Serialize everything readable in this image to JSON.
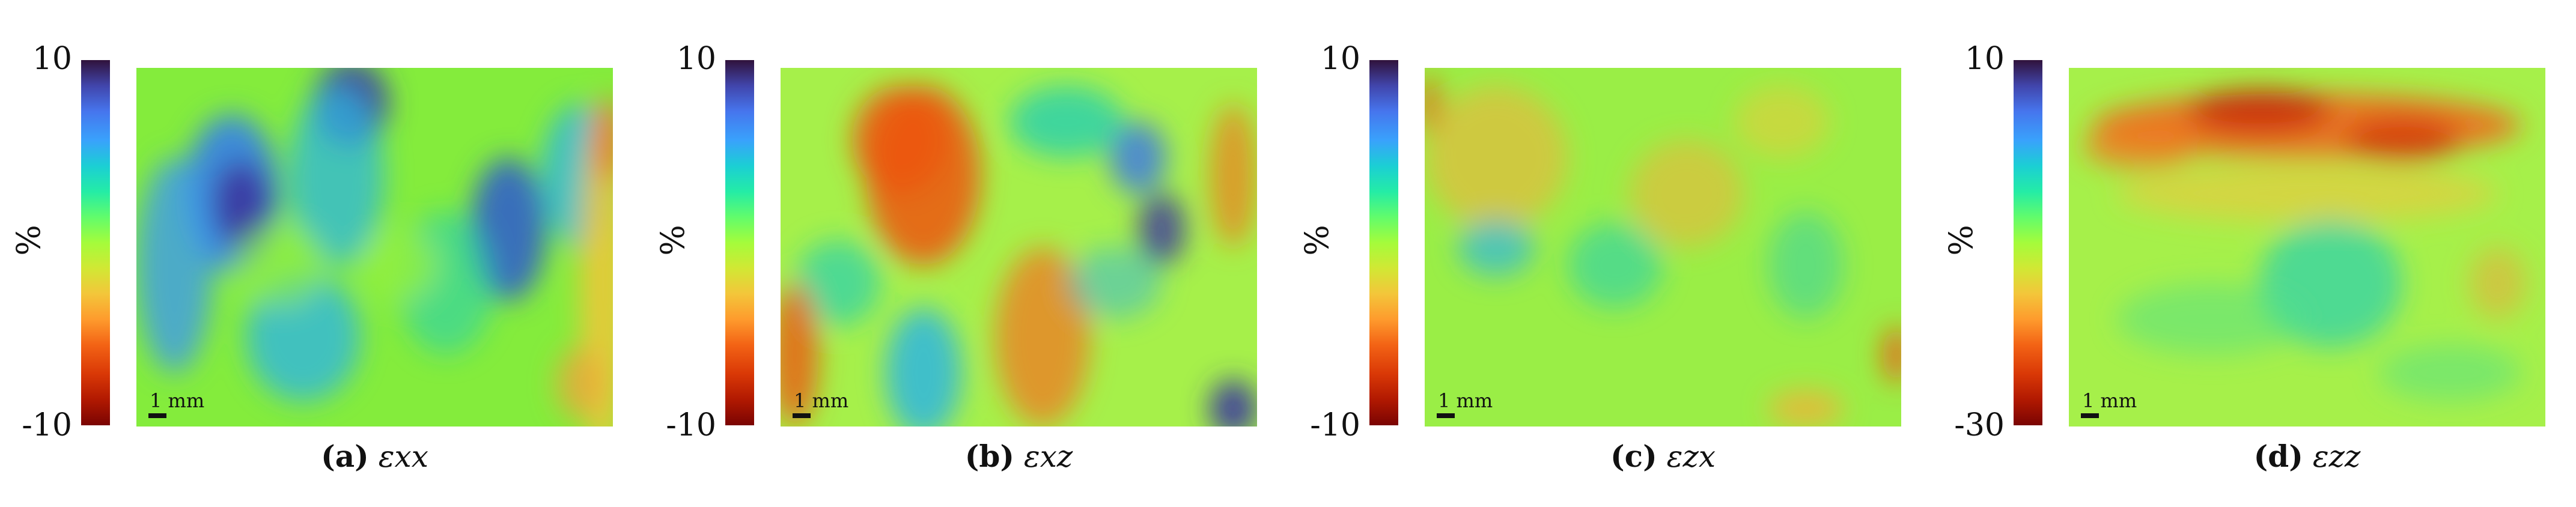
{
  "chart_data": [
    {
      "type": "heatmap",
      "label": "(a)",
      "symbol": "εxx",
      "unit": "%",
      "colorbar": {
        "max": "10",
        "min": "-10"
      },
      "scale_bar": "1 mm",
      "base": "#84ec3c",
      "blobs": [
        [
          0.2,
          0.35,
          0.1,
          0.22,
          "#3a86e0",
          0.95
        ],
        [
          0.22,
          0.38,
          0.06,
          0.12,
          "#3b36a0",
          0.9
        ],
        [
          0.08,
          0.55,
          0.08,
          0.3,
          "#3f9bea",
          0.8
        ],
        [
          0.45,
          0.1,
          0.08,
          0.12,
          "#3b3fa8",
          0.9
        ],
        [
          0.42,
          0.3,
          0.1,
          0.25,
          "#2fb6df",
          0.75
        ],
        [
          0.78,
          0.45,
          0.08,
          0.2,
          "#3263c8",
          0.9
        ],
        [
          0.65,
          0.6,
          0.1,
          0.2,
          "#27d0b0",
          0.6
        ],
        [
          0.35,
          0.75,
          0.12,
          0.18,
          "#2fb6df",
          0.8
        ],
        [
          0.93,
          0.3,
          0.08,
          0.2,
          "#2fb6df",
          0.8
        ],
        [
          0.98,
          0.6,
          0.05,
          0.5,
          "#f2c53a",
          0.85
        ],
        [
          0.99,
          0.2,
          0.03,
          0.12,
          "#f06a1c",
          0.8
        ],
        [
          0.93,
          0.88,
          0.05,
          0.1,
          "#f2a13a",
          0.7
        ],
        [
          0.55,
          0.55,
          0.08,
          0.1,
          "#93f040",
          0.8
        ],
        [
          0.3,
          0.55,
          0.1,
          0.12,
          "#93f040",
          0.6
        ]
      ]
    },
    {
      "type": "heatmap",
      "label": "(b)",
      "symbol": "εxz",
      "unit": "%",
      "colorbar": {
        "max": "10",
        "min": "-10"
      },
      "scale_bar": "1 mm",
      "base": "#a6f04a",
      "blobs": [
        [
          0.3,
          0.3,
          0.12,
          0.25,
          "#ee5512",
          0.85
        ],
        [
          0.25,
          0.2,
          0.1,
          0.15,
          "#ee5512",
          0.8
        ],
        [
          0.12,
          0.6,
          0.09,
          0.12,
          "#27d0b0",
          0.7
        ],
        [
          0.6,
          0.15,
          0.12,
          0.1,
          "#27d0b0",
          0.8
        ],
        [
          0.75,
          0.25,
          0.06,
          0.1,
          "#3f7de0",
          0.85
        ],
        [
          0.8,
          0.45,
          0.05,
          0.1,
          "#3b36a0",
          0.8
        ],
        [
          0.55,
          0.75,
          0.1,
          0.25,
          "#f07a20",
          0.75
        ],
        [
          0.3,
          0.85,
          0.08,
          0.18,
          "#2fb6df",
          0.85
        ],
        [
          0.95,
          0.95,
          0.05,
          0.08,
          "#3b36a0",
          0.9
        ],
        [
          0.03,
          0.8,
          0.05,
          0.2,
          "#ee5512",
          0.8
        ],
        [
          0.95,
          0.3,
          0.05,
          0.2,
          "#f07a20",
          0.7
        ],
        [
          0.7,
          0.6,
          0.1,
          0.1,
          "#2fb6df",
          0.5
        ]
      ]
    },
    {
      "type": "heatmap",
      "label": "(c)",
      "symbol": "εzx",
      "unit": "%",
      "colorbar": {
        "max": "10",
        "min": "-10"
      },
      "scale_bar": "1 mm",
      "base": "#9aee46",
      "blobs": [
        [
          0.15,
          0.25,
          0.15,
          0.2,
          "#f2b03a",
          0.6
        ],
        [
          0.55,
          0.35,
          0.12,
          0.15,
          "#f2b03a",
          0.55
        ],
        [
          0.15,
          0.5,
          0.08,
          0.08,
          "#2fb6df",
          0.7
        ],
        [
          0.4,
          0.55,
          0.1,
          0.12,
          "#27d0b0",
          0.6
        ],
        [
          0.8,
          0.55,
          0.08,
          0.15,
          "#27d0b0",
          0.5
        ],
        [
          0.01,
          0.1,
          0.02,
          0.08,
          "#ee5512",
          0.85
        ],
        [
          0.99,
          0.8,
          0.03,
          0.08,
          "#ee5512",
          0.8
        ],
        [
          0.8,
          0.95,
          0.08,
          0.05,
          "#f2b03a",
          0.8
        ],
        [
          0.75,
          0.15,
          0.1,
          0.1,
          "#f2c53a",
          0.5
        ]
      ]
    },
    {
      "type": "heatmap",
      "label": "(d)",
      "symbol": "εzz",
      "unit": "%",
      "colorbar": {
        "max": "10",
        "min": "-30"
      },
      "scale_bar": "1 mm",
      "base": "#a6f04a",
      "blobs": [
        [
          0.5,
          0.16,
          0.45,
          0.09,
          "#ee6a1c",
          0.9
        ],
        [
          0.4,
          0.12,
          0.15,
          0.06,
          "#c82a06",
          0.85
        ],
        [
          0.7,
          0.2,
          0.12,
          0.06,
          "#d2360a",
          0.8
        ],
        [
          0.15,
          0.22,
          0.12,
          0.06,
          "#f07a20",
          0.8
        ],
        [
          0.5,
          0.35,
          0.4,
          0.08,
          "#f2c53a",
          0.6
        ],
        [
          0.55,
          0.6,
          0.15,
          0.18,
          "#27d0b0",
          0.7
        ],
        [
          0.3,
          0.7,
          0.2,
          0.1,
          "#50e08a",
          0.5
        ],
        [
          0.9,
          0.6,
          0.06,
          0.1,
          "#f2a13a",
          0.5
        ],
        [
          0.8,
          0.85,
          0.15,
          0.08,
          "#50e08a",
          0.5
        ]
      ]
    }
  ]
}
